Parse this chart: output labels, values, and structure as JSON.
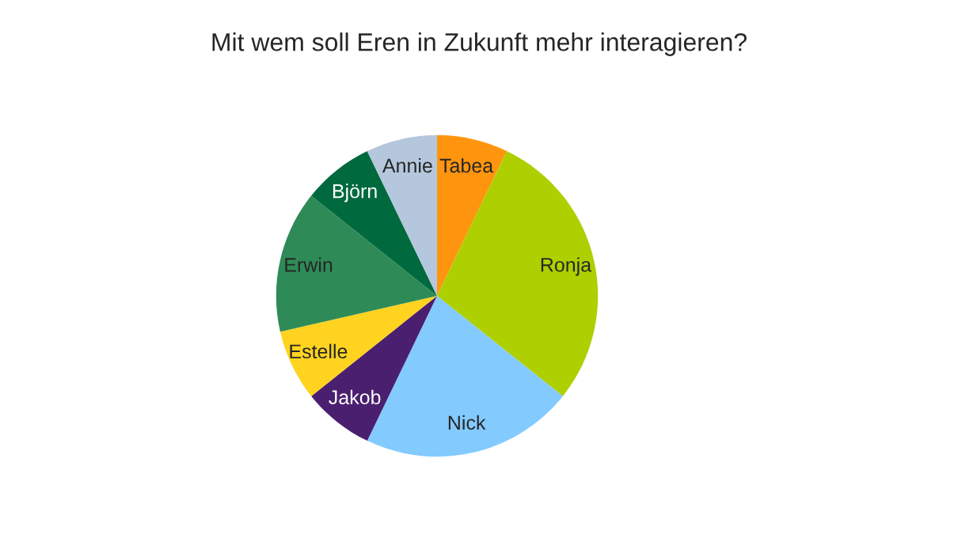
{
  "chart_data": {
    "type": "pie",
    "title": "Mit wem soll Eren in Zukunft mehr interagieren?",
    "categories": [
      "Tabea",
      "Ronja",
      "Nick",
      "Jakob",
      "Estelle",
      "Erwin",
      "Björn",
      "Annie"
    ],
    "values": [
      7.14,
      28.57,
      21.43,
      7.14,
      7.14,
      14.29,
      7.14,
      7.15
    ],
    "colors": [
      "#ff950e",
      "#aecf00",
      "#83caff",
      "#4b1f6f",
      "#ffd320",
      "#2e8b57",
      "#00693e",
      "#b4c7dc"
    ]
  }
}
